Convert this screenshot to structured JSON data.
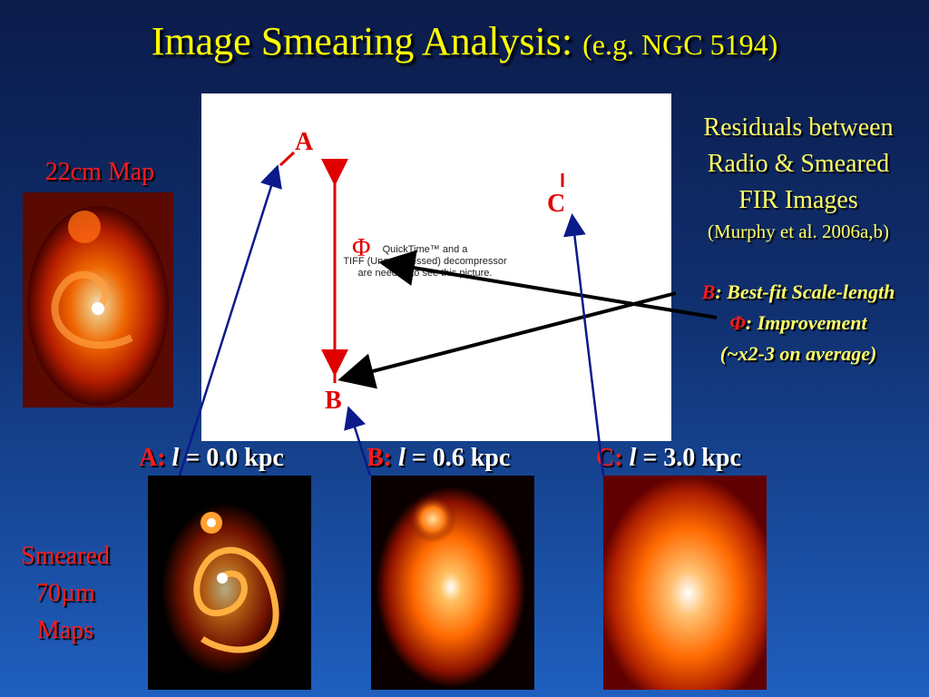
{
  "title": {
    "main": "Image Smearing Analysis:",
    "sub": "(e.g. NGC 5194)"
  },
  "figure": {
    "placeholder_lines": [
      "QuickTime™ and a",
      "TIFF (Uncompressed) decompressor",
      "are needed to see this picture."
    ],
    "label_a": "A",
    "label_b": "B",
    "label_c": "C",
    "label_phi": "Φ"
  },
  "residuals": {
    "lines": [
      "Residuals between",
      "Radio & Smeared",
      "FIR Images"
    ],
    "citation": "(Murphy et al. 2006a,b)"
  },
  "legend": {
    "b_symbol": "B",
    "b_text": ": Best-fit Scale-length",
    "phi_symbol": "Φ",
    "phi_text": ": Improvement",
    "avg_text": "(~x2-3 on average)"
  },
  "map_22cm": {
    "label": "22cm Map"
  },
  "smeared": {
    "lines": [
      "Smeared",
      "70µm",
      "Maps"
    ]
  },
  "scales": [
    {
      "letter": "A:",
      "symbol": "l",
      "value": "= 0.0 kpc"
    },
    {
      "letter": "B:",
      "symbol": "l",
      "value": "= 0.6 kpc"
    },
    {
      "letter": "C:",
      "symbol": "l",
      "value": "= 3.0 kpc"
    }
  ],
  "colors": {
    "title": "#ffff00",
    "label_red": "#ff1a1a",
    "arrow_red": "#e00000",
    "arrow_blue": "#0a1a8a"
  }
}
